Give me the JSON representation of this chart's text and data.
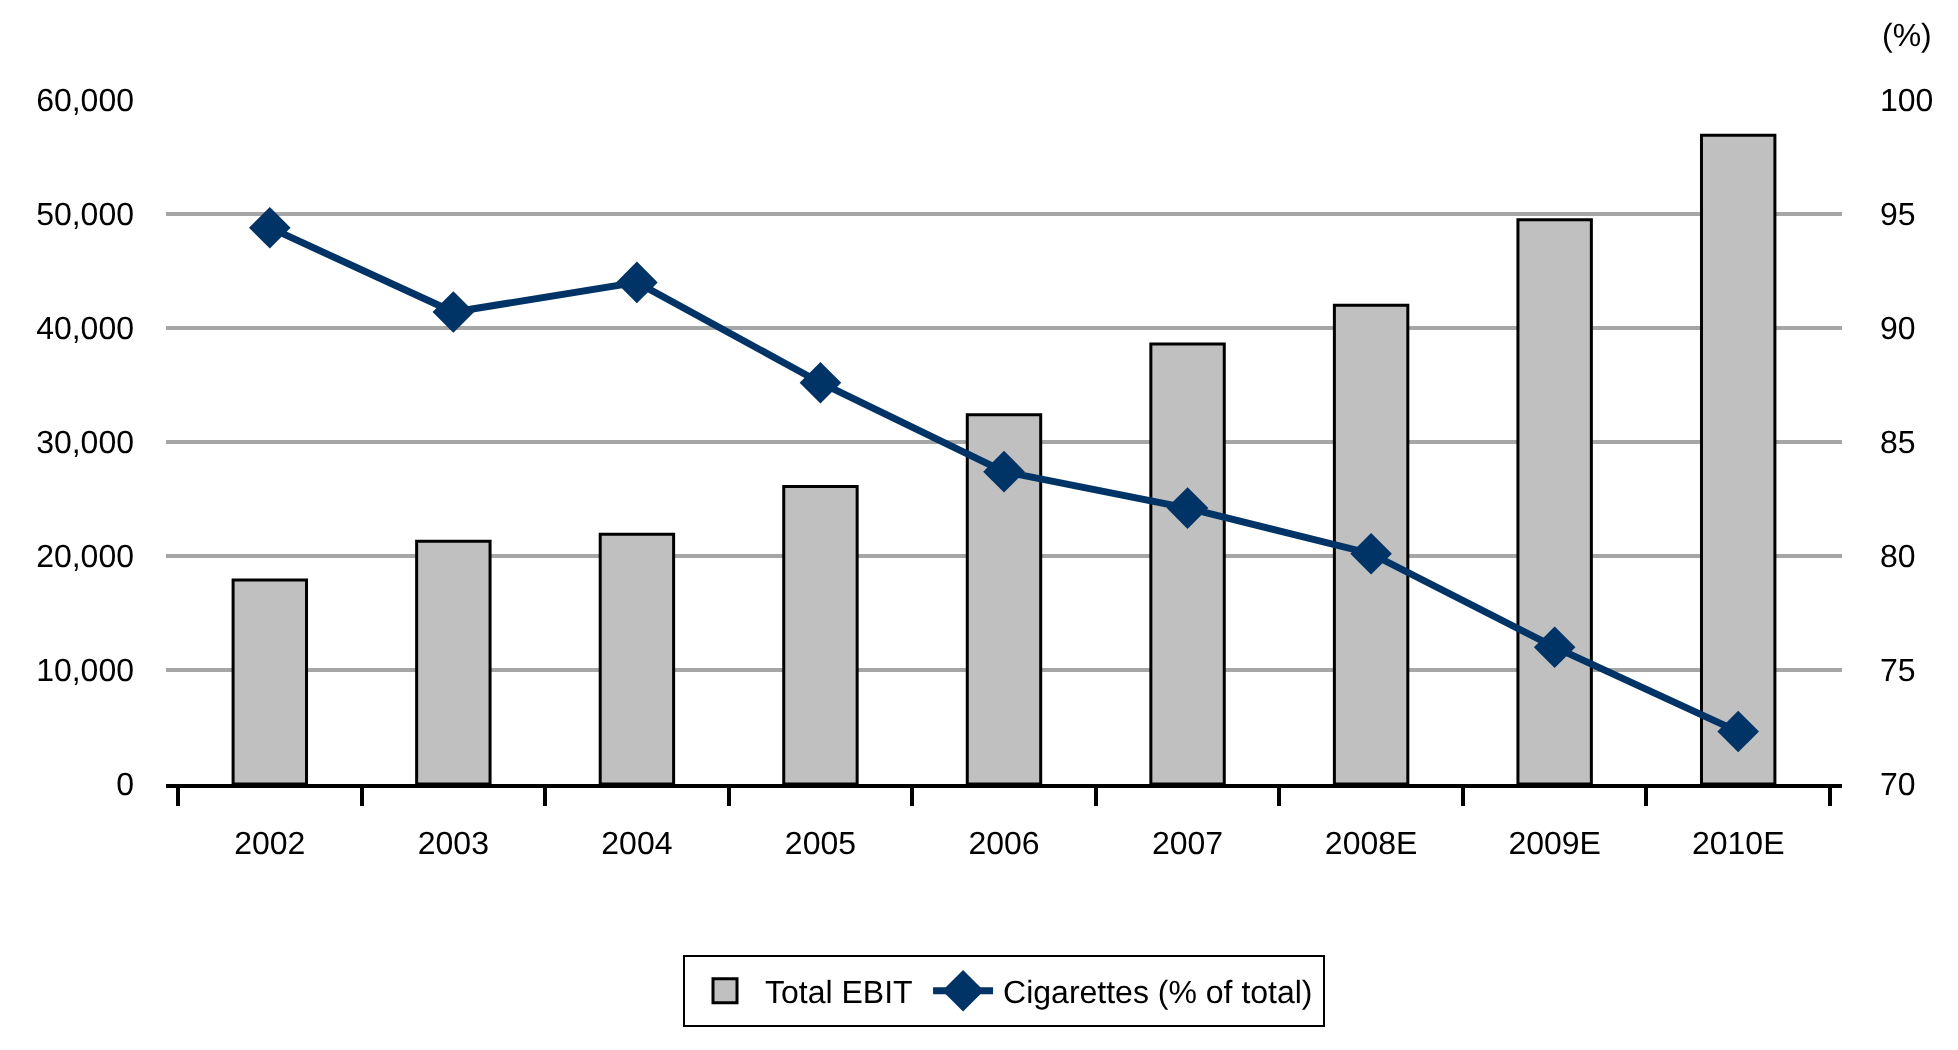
{
  "chart_data": {
    "type": "bar",
    "categories": [
      "2002",
      "2003",
      "2004",
      "2005",
      "2006",
      "2007",
      "2008E",
      "2009E",
      "2010E"
    ],
    "series": [
      {
        "name": "Total EBIT",
        "color": "#c0c0c0",
        "values": [
          17900,
          21300,
          21900,
          26100,
          32400,
          38600,
          42000,
          49500,
          56900
        ]
      },
      {
        "name": "Cigarettes (% of total)",
        "type": "line",
        "axis": "y2",
        "color": "#003366",
        "marker": "diamond",
        "line_style": "solid",
        "values": [
          94.4,
          90.7,
          92.0,
          87.6,
          83.7,
          82.1,
          80.1,
          76.0,
          72.3
        ]
      }
    ],
    "ylim": [
      0,
      60000
    ],
    "yticks": [
      0,
      {
        "value": 10000,
        "label": "10,000"
      },
      {
        "value": 20000,
        "label": "20,000"
      },
      {
        "value": 30000,
        "label": "30,000"
      },
      {
        "value": 40000,
        "label": "40,000"
      },
      {
        "value": 50000,
        "label": "50,000"
      },
      {
        "value": 60000,
        "label": "60,000"
      }
    ],
    "y2lim": [
      70,
      100
    ],
    "y2ticks": [
      70,
      75,
      80,
      85,
      90,
      95,
      100
    ],
    "y2label": "(%)",
    "grid": "y",
    "legend": "bottom"
  }
}
